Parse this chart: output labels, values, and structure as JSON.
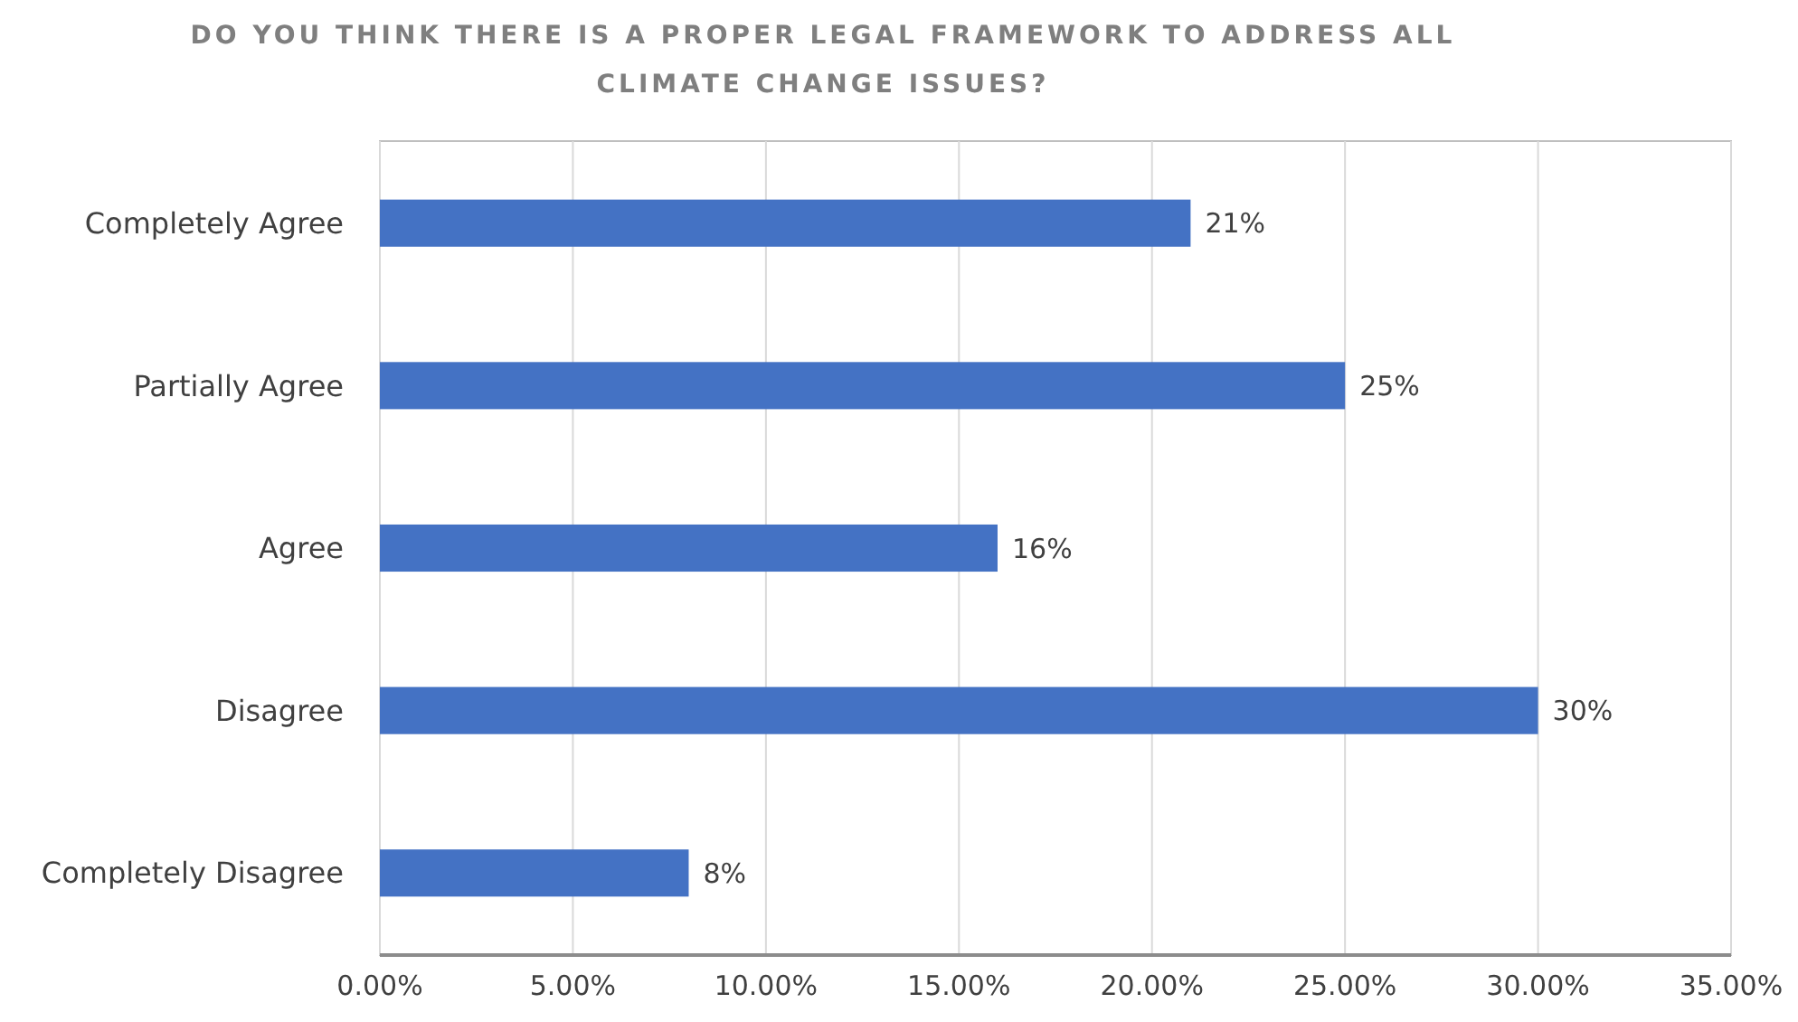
{
  "chart_data": {
    "type": "bar",
    "orientation": "horizontal",
    "title": "DO YOU THINK THERE IS A PROPER LEGAL FRAMEWORK TO ADDRESS ALL CLIMATE CHANGE ISSUES?",
    "categories": [
      "Completely Agree",
      "Partially Agree",
      "Agree",
      "Disagree",
      "Completely Disagree"
    ],
    "values": [
      21,
      25,
      16,
      30,
      8
    ],
    "value_labels": [
      "21%",
      "25%",
      "16%",
      "30%",
      "8%"
    ],
    "color": "#4472c4",
    "xlim": [
      0,
      35
    ],
    "xticks": [
      {
        "value": 0,
        "label": "0.00%"
      },
      {
        "value": 5,
        "label": "5.00%"
      },
      {
        "value": 10,
        "label": "10.00%"
      },
      {
        "value": 15,
        "label": "15.00%"
      },
      {
        "value": 20,
        "label": "20.00%"
      },
      {
        "value": 25,
        "label": "25.00%"
      },
      {
        "value": 30,
        "label": "30.00%"
      },
      {
        "value": 35,
        "label": "35.00%"
      }
    ],
    "grid": "x"
  }
}
